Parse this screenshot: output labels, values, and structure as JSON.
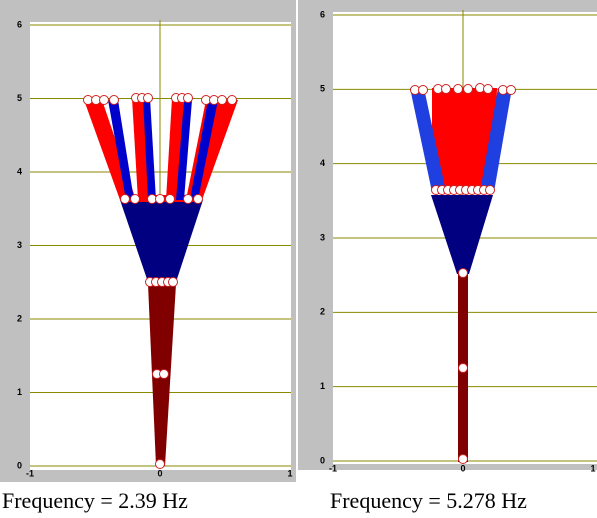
{
  "panels": [
    {
      "xticks": [
        -1,
        0,
        1
      ],
      "yticks": [
        0,
        1,
        2,
        3,
        4,
        5,
        6
      ],
      "caption": "Frequency = 2.39 Hz"
    },
    {
      "xticks": [
        -1,
        0,
        1
      ],
      "yticks": [
        0,
        1,
        2,
        3,
        4,
        5,
        6
      ],
      "caption": "Frequency = 5.278 Hz"
    }
  ]
}
